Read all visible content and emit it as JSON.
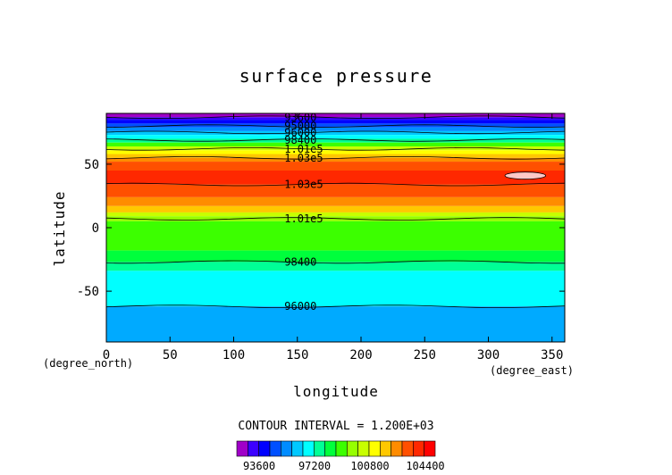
{
  "chart_data": {
    "type": "heatmap",
    "title": "surface pressure",
    "xlabel": "longitude",
    "ylabel": "latitude",
    "x_unit": "(degree_east)",
    "y_unit": "(degree_north)",
    "xlim": [
      0,
      360
    ],
    "ylim": [
      -90,
      90
    ],
    "x_ticks": [
      0,
      50,
      100,
      150,
      200,
      250,
      300,
      350
    ],
    "y_ticks": [
      -50,
      0,
      50
    ],
    "contour_interval_text": "CONTOUR INTERVAL = 1.200E+03",
    "colorbar_labels": [
      "93600",
      "97200",
      "100800",
      "104400"
    ],
    "colorbar_colors": [
      "#a000c8",
      "#3c00ff",
      "#0000ff",
      "#0050ff",
      "#008cff",
      "#00c8ff",
      "#00ffff",
      "#00ff96",
      "#00ff3c",
      "#3cff00",
      "#96ff00",
      "#c8ff00",
      "#ffff00",
      "#ffc800",
      "#ff8c00",
      "#ff5000",
      "#ff2800",
      "#ff0000"
    ],
    "bands": [
      {
        "lat_top": 90,
        "lat_bottom": 87,
        "color": "#a000c8"
      },
      {
        "lat_top": 87,
        "lat_bottom": 85,
        "color": "#3c00ff"
      },
      {
        "lat_top": 85,
        "lat_bottom": 82,
        "color": "#0000ff"
      },
      {
        "lat_top": 82,
        "lat_bottom": 79,
        "color": "#0050ff"
      },
      {
        "lat_top": 79,
        "lat_bottom": 76,
        "color": "#008cff"
      },
      {
        "lat_top": 76,
        "lat_bottom": 73,
        "color": "#00c8ff"
      },
      {
        "lat_top": 73,
        "lat_bottom": 70,
        "color": "#00ffff"
      },
      {
        "lat_top": 70,
        "lat_bottom": 67,
        "color": "#00ff96"
      },
      {
        "lat_top": 67,
        "lat_bottom": 64,
        "color": "#3cff00"
      },
      {
        "lat_top": 64,
        "lat_bottom": 61,
        "color": "#c8ff00"
      },
      {
        "lat_top": 61,
        "lat_bottom": 58,
        "color": "#ffff00"
      },
      {
        "lat_top": 58,
        "lat_bottom": 55,
        "color": "#ffc800"
      },
      {
        "lat_top": 55,
        "lat_bottom": 52,
        "color": "#ff8c00"
      },
      {
        "lat_top": 52,
        "lat_bottom": 45,
        "color": "#ff5000"
      },
      {
        "lat_top": 45,
        "lat_bottom": 34,
        "color": "#ff2800"
      },
      {
        "lat_top": 34,
        "lat_bottom": 24,
        "color": "#ff5000"
      },
      {
        "lat_top": 24,
        "lat_bottom": 17,
        "color": "#ff8c00"
      },
      {
        "lat_top": 17,
        "lat_bottom": 12,
        "color": "#ffc800"
      },
      {
        "lat_top": 12,
        "lat_bottom": 9,
        "color": "#c8ff00"
      },
      {
        "lat_top": 9,
        "lat_bottom": 5,
        "color": "#96ff00"
      },
      {
        "lat_top": 5,
        "lat_bottom": -18,
        "color": "#3cff00"
      },
      {
        "lat_top": -18,
        "lat_bottom": -27,
        "color": "#00ff3c"
      },
      {
        "lat_top": -27,
        "lat_bottom": -34,
        "color": "#00ff96"
      },
      {
        "lat_top": -34,
        "lat_bottom": -62,
        "color": "#00ffff"
      },
      {
        "lat_top": -62,
        "lat_bottom": -90,
        "color": "#00aaff"
      }
    ],
    "contours": [
      {
        "lat": 87,
        "label": "93600",
        "label_lon": 130
      },
      {
        "lat": 80,
        "label": "95000",
        "label_lon": 130
      },
      {
        "lat": 75,
        "label": "96000",
        "label_lon": 130
      },
      {
        "lat": 69,
        "label": "98400",
        "label_lon": 130
      },
      {
        "lat": 62,
        "label": "1.01e5",
        "label_lon": 130
      },
      {
        "lat": 55,
        "label": "1.03e5",
        "label_lon": 130
      },
      {
        "lat": 34,
        "label": "1.03e5",
        "label_lon": 130
      },
      {
        "lat": 7,
        "label": "1.01e5",
        "label_lon": 130
      },
      {
        "lat": -27,
        "label": "98400",
        "label_lon": 130
      },
      {
        "lat": -62,
        "label": "96000",
        "label_lon": 130
      }
    ],
    "highs": [
      {
        "lon": 329,
        "lat": 41,
        "lon_half_width": 16,
        "lat_half_height": 2.8,
        "color": "#ffc8c8"
      }
    ]
  }
}
